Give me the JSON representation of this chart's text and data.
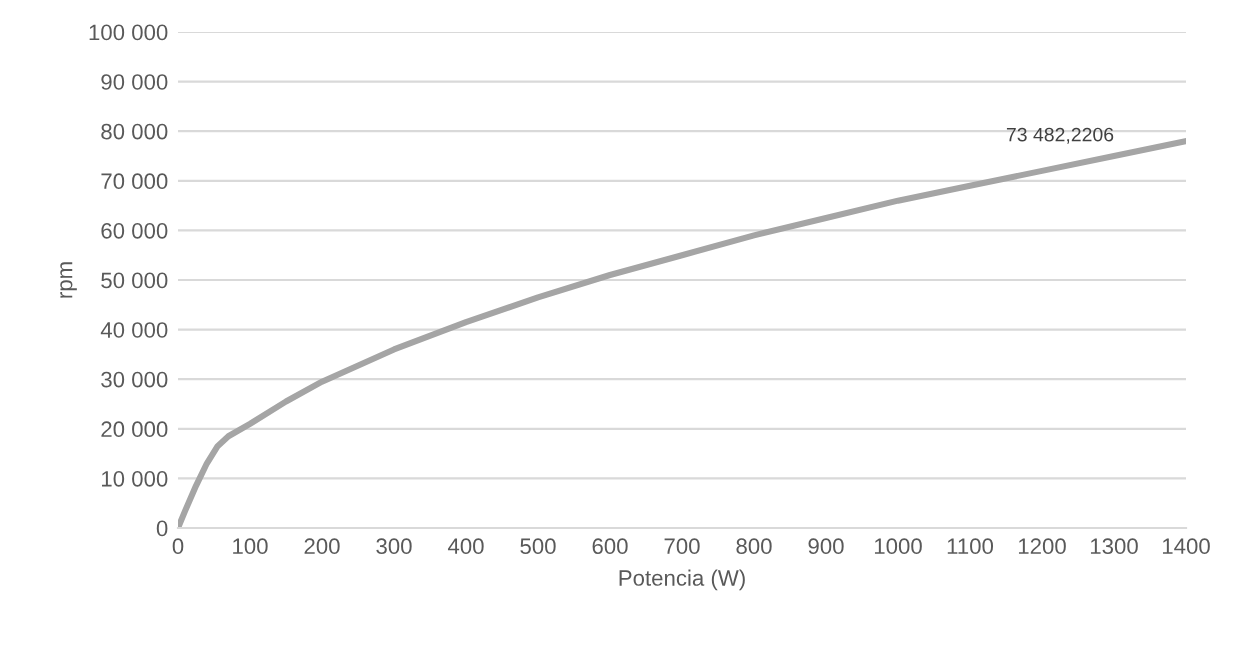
{
  "chart_data": {
    "type": "line",
    "xlabel": "Potencia (W)",
    "ylabel": "rpm",
    "x": [
      0,
      10,
      25,
      40,
      55,
      70,
      100,
      150,
      200,
      300,
      400,
      500,
      600,
      700,
      800,
      900,
      1000,
      1100,
      1200,
      1300,
      1400
    ],
    "series": [
      {
        "color": "#a5a5a5",
        "values": [
          0,
          3500,
          8500,
          13000,
          16500,
          18500,
          21000,
          25500,
          29500,
          36000,
          41500,
          46500,
          51000,
          55000,
          59000,
          62500,
          66000,
          69000,
          72000,
          75000,
          78000
        ]
      }
    ],
    "xlim": [
      0,
      1400
    ],
    "xticks": [
      0,
      100,
      200,
      300,
      400,
      500,
      600,
      700,
      800,
      900,
      1000,
      1100,
      1200,
      1300,
      1400
    ],
    "ylim": [
      0,
      100000
    ],
    "yticks": [
      0,
      {
        "value": 10000,
        "label": "10 000"
      },
      {
        "value": 20000,
        "label": "20 000"
      },
      {
        "value": 30000,
        "label": "30 000"
      },
      {
        "value": 40000,
        "label": "40 000"
      },
      {
        "value": 50000,
        "label": "50 000"
      },
      {
        "value": 60000,
        "label": "60 000"
      },
      {
        "value": 70000,
        "label": "70 000"
      },
      {
        "value": 80000,
        "label": "80 000"
      },
      {
        "value": 90000,
        "label": "90 000"
      },
      {
        "value": 100000,
        "label": "100 000"
      }
    ],
    "grid": "y",
    "marker": "none",
    "line_style": "solid",
    "legend": false,
    "annotations": [
      {
        "text": "73 482,2206",
        "x": 1225,
        "y": 73482.2206
      }
    ]
  }
}
